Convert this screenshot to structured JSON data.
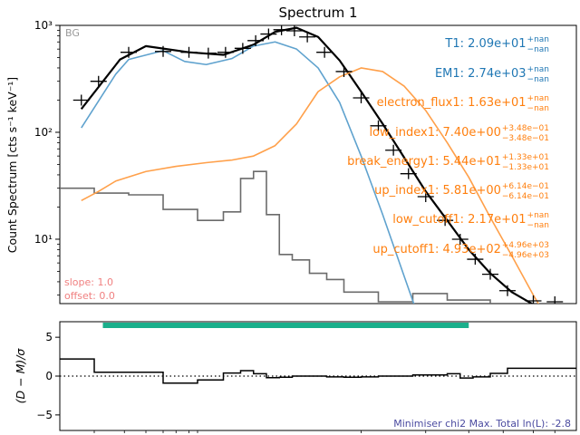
{
  "chart_data": [
    {
      "panel": "spectrum",
      "type": "line",
      "title": "Spectrum 1",
      "ylabel": "Count Spectrum [cts s⁻¹ keV⁻¹]",
      "yscale": "log",
      "xscale": "log",
      "ylim": [
        2.5,
        1000
      ],
      "yticks": [
        {
          "label": "10¹",
          "value": 10
        },
        {
          "label": "10²",
          "value": 100
        },
        {
          "label": "10³",
          "value": 1000
        }
      ],
      "corner_label": "BG",
      "footnote": [
        "slope: 1.0",
        "offset: 0.0"
      ],
      "series": [
        {
          "role": "data",
          "color": "#000000",
          "style": "crosshair",
          "points": [
            [
              0.05,
              200
            ],
            [
              0.09,
              300
            ],
            [
              0.16,
              560
            ],
            [
              0.24,
              570
            ],
            [
              0.3,
              560
            ],
            [
              0.345,
              550
            ],
            [
              0.385,
              560
            ],
            [
              0.425,
              610
            ],
            [
              0.455,
              720
            ],
            [
              0.485,
              830
            ],
            [
              0.515,
              910
            ],
            [
              0.545,
              890
            ],
            [
              0.575,
              780
            ],
            [
              0.615,
              560
            ],
            [
              0.66,
              370
            ],
            [
              0.7,
              210
            ],
            [
              0.74,
              115
            ],
            [
              0.775,
              68
            ],
            [
              0.81,
              41
            ],
            [
              0.85,
              25
            ],
            [
              0.895,
              15
            ],
            [
              0.93,
              10
            ],
            [
              0.965,
              6.5
            ],
            [
              1.0,
              4.7
            ],
            [
              1.04,
              3.3
            ],
            [
              1.1,
              2.65
            ],
            [
              1.15,
              2.6
            ]
          ]
        },
        {
          "role": "total_model",
          "color": "#000000",
          "points": [
            [
              0.05,
              165
            ],
            [
              0.14,
              480
            ],
            [
              0.2,
              640
            ],
            [
              0.3,
              560
            ],
            [
              0.38,
              530
            ],
            [
              0.45,
              660
            ],
            [
              0.5,
              870
            ],
            [
              0.55,
              950
            ],
            [
              0.6,
              780
            ],
            [
              0.65,
              470
            ],
            [
              0.7,
              240
            ],
            [
              0.75,
              120
            ],
            [
              0.8,
              58
            ],
            [
              0.85,
              28
            ],
            [
              0.9,
              15
            ],
            [
              0.95,
              8
            ],
            [
              1.0,
              4.8
            ],
            [
              1.05,
              3.2
            ],
            [
              1.1,
              2.45
            ],
            [
              1.15,
              2.35
            ]
          ]
        },
        {
          "role": "thermal_component",
          "color": "#5fa2ce",
          "points": [
            [
              0.05,
              110
            ],
            [
              0.13,
              350
            ],
            [
              0.16,
              480
            ],
            [
              0.24,
              580
            ],
            [
              0.29,
              460
            ],
            [
              0.34,
              430
            ],
            [
              0.4,
              490
            ],
            [
              0.45,
              640
            ],
            [
              0.5,
              700
            ],
            [
              0.55,
              600
            ],
            [
              0.6,
              400
            ],
            [
              0.65,
              190
            ],
            [
              0.7,
              60
            ],
            [
              0.75,
              17
            ],
            [
              0.8,
              4.5
            ],
            [
              0.85,
              1.2
            ]
          ]
        },
        {
          "role": "nonthermal_component",
          "color": "#ffa04a",
          "points": [
            [
              0.05,
              23
            ],
            [
              0.09,
              28
            ],
            [
              0.13,
              35
            ],
            [
              0.2,
              43
            ],
            [
              0.27,
              48
            ],
            [
              0.34,
              52
            ],
            [
              0.4,
              55
            ],
            [
              0.45,
              60
            ],
            [
              0.5,
              75
            ],
            [
              0.55,
              120
            ],
            [
              0.6,
              240
            ],
            [
              0.65,
              330
            ],
            [
              0.7,
              400
            ],
            [
              0.75,
              370
            ],
            [
              0.8,
              270
            ],
            [
              0.85,
              160
            ],
            [
              0.9,
              80
            ],
            [
              0.95,
              38
            ],
            [
              1.0,
              16
            ],
            [
              1.05,
              7
            ],
            [
              1.1,
              3
            ],
            [
              1.15,
              1.4
            ]
          ]
        },
        {
          "role": "background",
          "color": "#6b6b6b",
          "style": "step",
          "edges": [
            0.0,
            0.08,
            0.16,
            0.24,
            0.32,
            0.38,
            0.42,
            0.45,
            0.48,
            0.51,
            0.54,
            0.58,
            0.62,
            0.66,
            0.7,
            0.74,
            0.82,
            0.9,
            1.0,
            1.2
          ],
          "values": [
            30,
            27,
            26,
            19,
            15,
            18,
            37,
            43,
            17,
            7.2,
            6.4,
            4.8,
            4.2,
            3.2,
            3.2,
            2.6,
            3.1,
            2.7,
            2.2
          ]
        }
      ],
      "annotations": [
        {
          "text": "T1: 2.09e+01",
          "sup": "+nan",
          "sub": "−nan",
          "color": "#1f77b4"
        },
        {
          "text": "EM1: 2.74e+03",
          "sup": "+nan",
          "sub": "−nan",
          "color": "#1f77b4"
        },
        {
          "text": "electron_flux1: 1.63e+01",
          "sup": "+nan",
          "sub": "−nan",
          "color": "#ff7f0e"
        },
        {
          "text": "low_index1: 7.40e+00",
          "sup": "+3.48e−01",
          "sub": "−3.48e−01",
          "color": "#ff7f0e"
        },
        {
          "text": "break_energy1: 5.44e+01",
          "sup": "+1.33e+01",
          "sub": "−1.33e+01",
          "color": "#ff7f0e"
        },
        {
          "text": "up_index1: 5.81e+00",
          "sup": "+6.14e−01",
          "sub": "−6.14e−01",
          "color": "#ff7f0e"
        },
        {
          "text": "low_cutoff1: 2.17e+01",
          "sup": "+nan",
          "sub": "−nan",
          "color": "#ff7f0e"
        },
        {
          "text": "up_cutoff1: 4.93e+02",
          "sup": "+4.96e+03",
          "sub": "−4.96e+03",
          "color": "#ff7f0e"
        }
      ]
    },
    {
      "panel": "residuals",
      "type": "line",
      "ylabel": "(D − M)/σ",
      "ylim": [
        -7,
        7
      ],
      "yticks": [
        {
          "label": "5",
          "value": 5
        },
        {
          "label": "0",
          "value": 0
        },
        {
          "label": "−5",
          "value": -5
        }
      ],
      "zero_line": "dotted",
      "fit_range_color": "#1aaf8b",
      "fit_range": [
        0.1,
        0.95
      ],
      "footer": "Minimiser chi2 Max. Total ln(L): -2.8",
      "residual_steps": {
        "edges": [
          0.0,
          0.08,
          0.16,
          0.24,
          0.32,
          0.38,
          0.42,
          0.45,
          0.48,
          0.51,
          0.54,
          0.58,
          0.62,
          0.66,
          0.7,
          0.74,
          0.82,
          0.9,
          0.93,
          0.96,
          1.0,
          1.04,
          1.1,
          1.2
        ],
        "values": [
          2.2,
          0.5,
          0.5,
          -0.9,
          -0.5,
          0.4,
          0.7,
          0.3,
          -0.2,
          -0.15,
          0.0,
          0.0,
          -0.1,
          -0.15,
          -0.1,
          0.0,
          0.15,
          0.3,
          -0.25,
          -0.1,
          0.35,
          1.0,
          1.0
        ]
      }
    }
  ]
}
